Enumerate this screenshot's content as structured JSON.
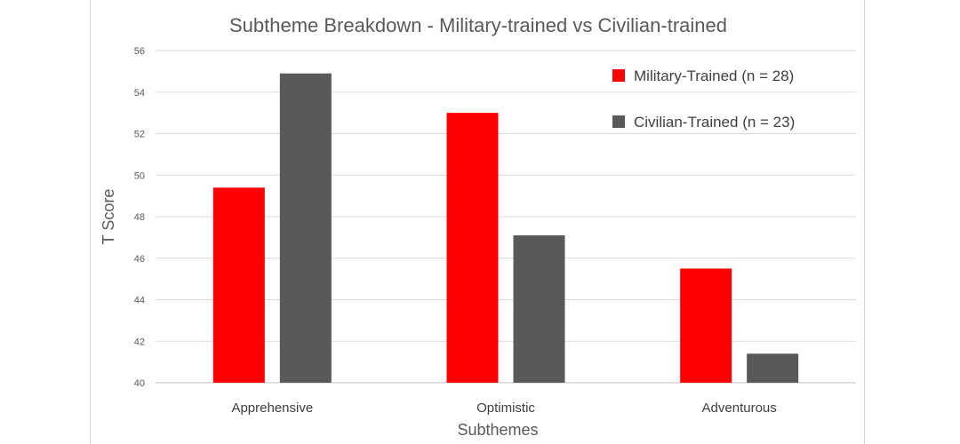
{
  "chart_data": {
    "type": "bar",
    "title": "Subtheme Breakdown - Military-trained vs Civilian-trained",
    "xlabel": "Subthemes",
    "ylabel": "T Score",
    "categories": [
      "Apprehensive",
      "Optimistic",
      "Adventurous"
    ],
    "ylim": [
      40,
      56
    ],
    "yticks": [
      "40",
      "42",
      "44",
      "46",
      "48",
      "50",
      "52",
      "54",
      "56"
    ],
    "grid": true,
    "legend_position": "top-right",
    "series": [
      {
        "name": "Military-Trained (n = 28)",
        "color": "#ff0000",
        "values": [
          49.4,
          53.0,
          45.5
        ]
      },
      {
        "name": "Civilian-Trained (n = 23)",
        "color": "#595959",
        "values": [
          54.9,
          47.1,
          41.4
        ]
      }
    ]
  }
}
